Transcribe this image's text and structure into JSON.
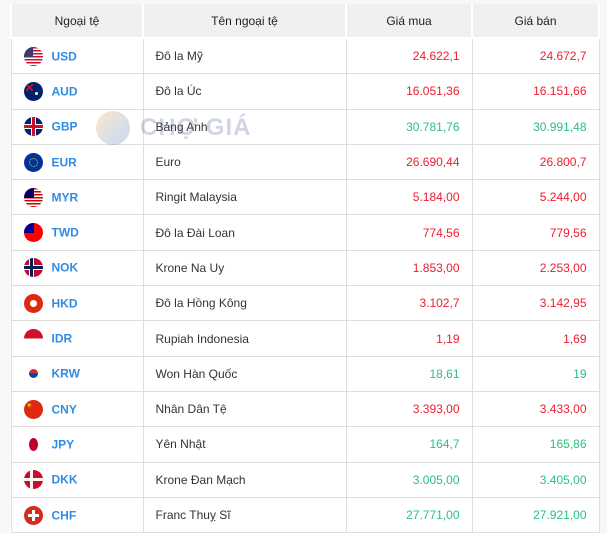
{
  "table": {
    "headers": [
      "Ngoại tệ",
      "Tên ngoại tệ",
      "Giá mua",
      "Giá bán"
    ],
    "rows": [
      {
        "code": "USD",
        "name": "Đô la Mỹ",
        "buy": "24.622,1",
        "sell": "24.672,7",
        "trend": "down",
        "flag": "us"
      },
      {
        "code": "AUD",
        "name": "Đô la Úc",
        "buy": "16.051,36",
        "sell": "16.151,66",
        "trend": "down",
        "flag": "au"
      },
      {
        "code": "GBP",
        "name": "Bảng Anh",
        "buy": "30.781,76",
        "sell": "30.991,48",
        "trend": "up",
        "flag": "gb"
      },
      {
        "code": "EUR",
        "name": "Euro",
        "buy": "26.690,44",
        "sell": "26.800,7",
        "trend": "down",
        "flag": "eu"
      },
      {
        "code": "MYR",
        "name": "Ringit Malaysia",
        "buy": "5.184,00",
        "sell": "5.244,00",
        "trend": "down",
        "flag": "my"
      },
      {
        "code": "TWD",
        "name": "Đô la Đài Loan",
        "buy": "774,56",
        "sell": "779,56",
        "trend": "down",
        "flag": "tw"
      },
      {
        "code": "NOK",
        "name": "Krone Na Uy",
        "buy": "1.853,00",
        "sell": "2.253,00",
        "trend": "down",
        "flag": "no"
      },
      {
        "code": "HKD",
        "name": "Đô la Hồng Kông",
        "buy": "3.102,7",
        "sell": "3.142,95",
        "trend": "down",
        "flag": "hk"
      },
      {
        "code": "IDR",
        "name": "Rupiah Indonesia",
        "buy": "1,19",
        "sell": "1,69",
        "trend": "down",
        "flag": "id"
      },
      {
        "code": "KRW",
        "name": "Won Hàn Quốc",
        "buy": "18,61",
        "sell": "19",
        "trend": "up",
        "flag": "kr"
      },
      {
        "code": "CNY",
        "name": "Nhân Dân Tệ",
        "buy": "3.393,00",
        "sell": "3.433,00",
        "trend": "down",
        "flag": "cn"
      },
      {
        "code": "JPY",
        "name": "Yên Nhật",
        "buy": "164,7",
        "sell": "165,86",
        "trend": "up",
        "flag": "jp"
      },
      {
        "code": "DKK",
        "name": "Krone Đan Mạch",
        "buy": "3.005,00",
        "sell": "3.405,00",
        "trend": "up",
        "flag": "dk"
      },
      {
        "code": "CHF",
        "name": "Franc Thuỵ Sĩ",
        "buy": "27.771,00",
        "sell": "27.921,00",
        "trend": "up",
        "flag": "ch"
      }
    ]
  },
  "colors": {
    "up": "#2bbf7f",
    "down": "#ee1d2f",
    "code": "#2f8de4"
  },
  "watermark": {
    "text": "CHỢ GIÁ"
  }
}
